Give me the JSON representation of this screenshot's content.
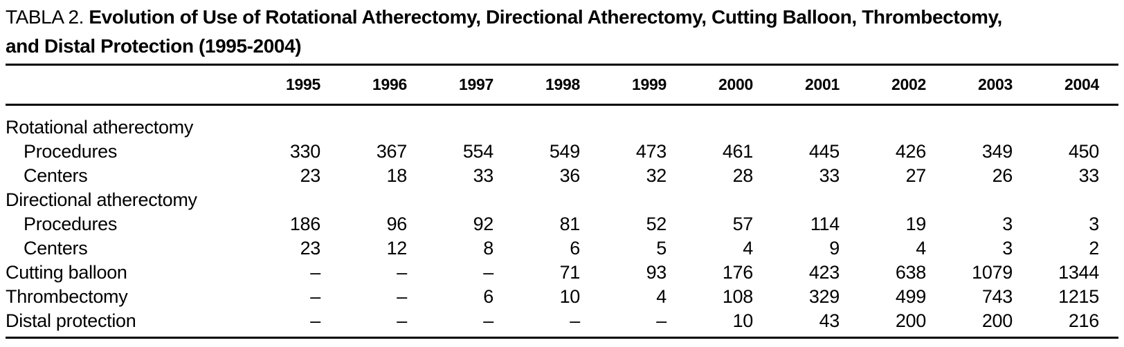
{
  "page": {
    "background_color": "#ffffff",
    "text_color": "#000000"
  },
  "table": {
    "label": "TABLA 2.",
    "title_line1": "Evolution of Use of Rotational Atherectomy, Directional Atherectomy, Cutting Balloon, Thrombectomy,",
    "title_line2": "and Distal Protection (1995-2004)",
    "columns": [
      "1995",
      "1996",
      "1997",
      "1998",
      "1999",
      "2000",
      "2001",
      "2002",
      "2003",
      "2004"
    ],
    "rows": [
      {
        "label": "Rotational atherectomy",
        "indent": 0,
        "values": [
          "",
          "",
          "",
          "",
          "",
          "",
          "",
          "",
          "",
          ""
        ]
      },
      {
        "label": "Procedures",
        "indent": 1,
        "values": [
          "330",
          "367",
          "554",
          "549",
          "473",
          "461",
          "445",
          "426",
          "349",
          "450"
        ]
      },
      {
        "label": "Centers",
        "indent": 1,
        "values": [
          "23",
          "18",
          "33",
          "36",
          "32",
          "28",
          "33",
          "27",
          "26",
          "33"
        ]
      },
      {
        "label": "Directional atherectomy",
        "indent": 0,
        "values": [
          "",
          "",
          "",
          "",
          "",
          "",
          "",
          "",
          "",
          ""
        ]
      },
      {
        "label": "Procedures",
        "indent": 1,
        "values": [
          "186",
          "96",
          "92",
          "81",
          "52",
          "57",
          "114",
          "19",
          "3",
          "3"
        ]
      },
      {
        "label": "Centers",
        "indent": 1,
        "values": [
          "23",
          "12",
          "8",
          "6",
          "5",
          "4",
          "9",
          "4",
          "3",
          "2"
        ]
      },
      {
        "label": "Cutting balloon",
        "indent": 0,
        "values": [
          "–",
          "–",
          "–",
          "71",
          "93",
          "176",
          "423",
          "638",
          "1079",
          "1344"
        ]
      },
      {
        "label": "Thrombectomy",
        "indent": 0,
        "values": [
          "–",
          "–",
          "6",
          "10",
          "4",
          "108",
          "329",
          "499",
          "743",
          "1215"
        ]
      },
      {
        "label": "Distal protection",
        "indent": 0,
        "values": [
          "–",
          "–",
          "–",
          "–",
          "–",
          "10",
          "43",
          "200",
          "200",
          "216"
        ]
      }
    ]
  }
}
